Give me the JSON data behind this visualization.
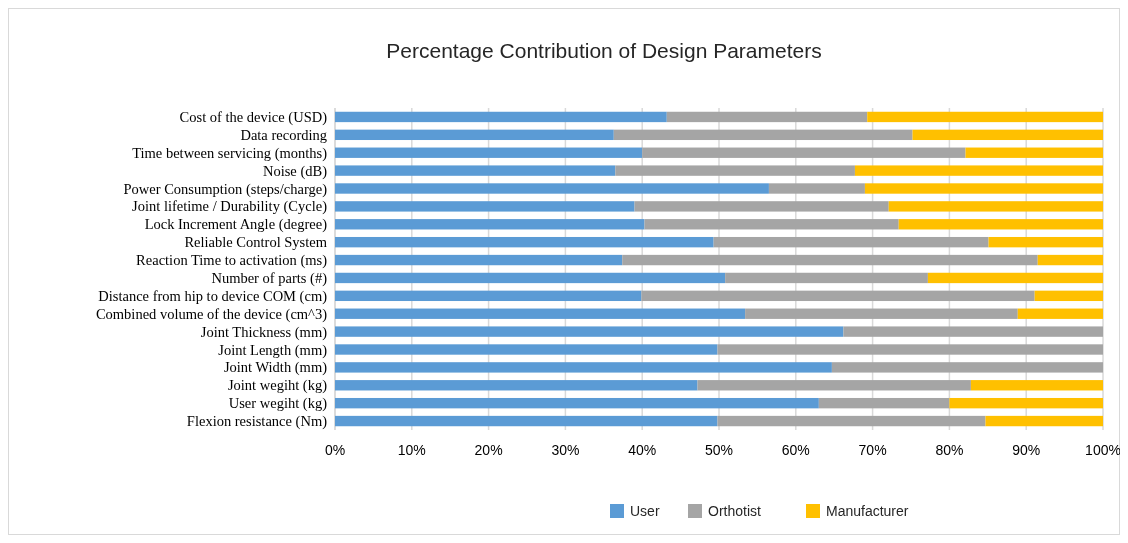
{
  "chart_data": {
    "type": "bar",
    "orientation": "horizontal",
    "stacked": true,
    "title": "Percentage Contribution of Design Parameters",
    "categories": [
      "Cost of the device (USD)",
      "Data recording",
      "Time between servicing (months)",
      "Noise  (dB)",
      "Power Consumption (steps/charge)",
      "Joint lifetime / Durability (Cycle)",
      "Lock Increment Angle (degree)",
      "Reliable Control System",
      "Reaction Time to activation (ms)",
      "Number of parts (#)",
      "Distance from hip to device COM (cm)",
      "Combined volume of the device (cm^3)",
      "Joint Thickness (mm)",
      "Joint Length (mm)",
      "Joint Width (mm)",
      "Joint wegiht (kg)",
      "User wegiht (kg)",
      "Flexion resistance (Nm)"
    ],
    "series": [
      {
        "name": "User",
        "color": "#5b9bd5",
        "values": [
          43.2,
          36.3,
          40.0,
          36.5,
          56.5,
          39.0,
          40.3,
          49.3,
          37.4,
          50.8,
          39.9,
          53.4,
          66.2,
          49.8,
          64.7,
          47.2,
          63.0,
          49.8
        ]
      },
      {
        "name": "Orthotist",
        "color": "#a5a5a5",
        "values": [
          26.1,
          38.9,
          42.1,
          31.2,
          12.5,
          33.1,
          33.1,
          35.8,
          54.1,
          26.4,
          51.2,
          35.5,
          33.8,
          50.2,
          35.3,
          35.6,
          17.0,
          34.9
        ]
      },
      {
        "name": "Manufacturer",
        "color": "#ffc000",
        "values": [
          30.7,
          24.8,
          17.9,
          32.3,
          31.0,
          27.9,
          26.6,
          14.9,
          8.5,
          22.8,
          8.9,
          11.1,
          0,
          0,
          0,
          17.2,
          20.0,
          15.3
        ]
      }
    ],
    "xlim": [
      0,
      100
    ],
    "xticks": [
      {
        "value": 0,
        "label": "0%"
      },
      {
        "value": 10,
        "label": "10%"
      },
      {
        "value": 20,
        "label": "20%"
      },
      {
        "value": 30,
        "label": "30%"
      },
      {
        "value": 40,
        "label": "40%"
      },
      {
        "value": 50,
        "label": "50%"
      },
      {
        "value": 60,
        "label": "60%"
      },
      {
        "value": 70,
        "label": "70%"
      },
      {
        "value": 80,
        "label": "80%"
      },
      {
        "value": 90,
        "label": "90%"
      },
      {
        "value": 100,
        "label": "100%"
      }
    ],
    "grid": "x",
    "legend": "bottom"
  }
}
